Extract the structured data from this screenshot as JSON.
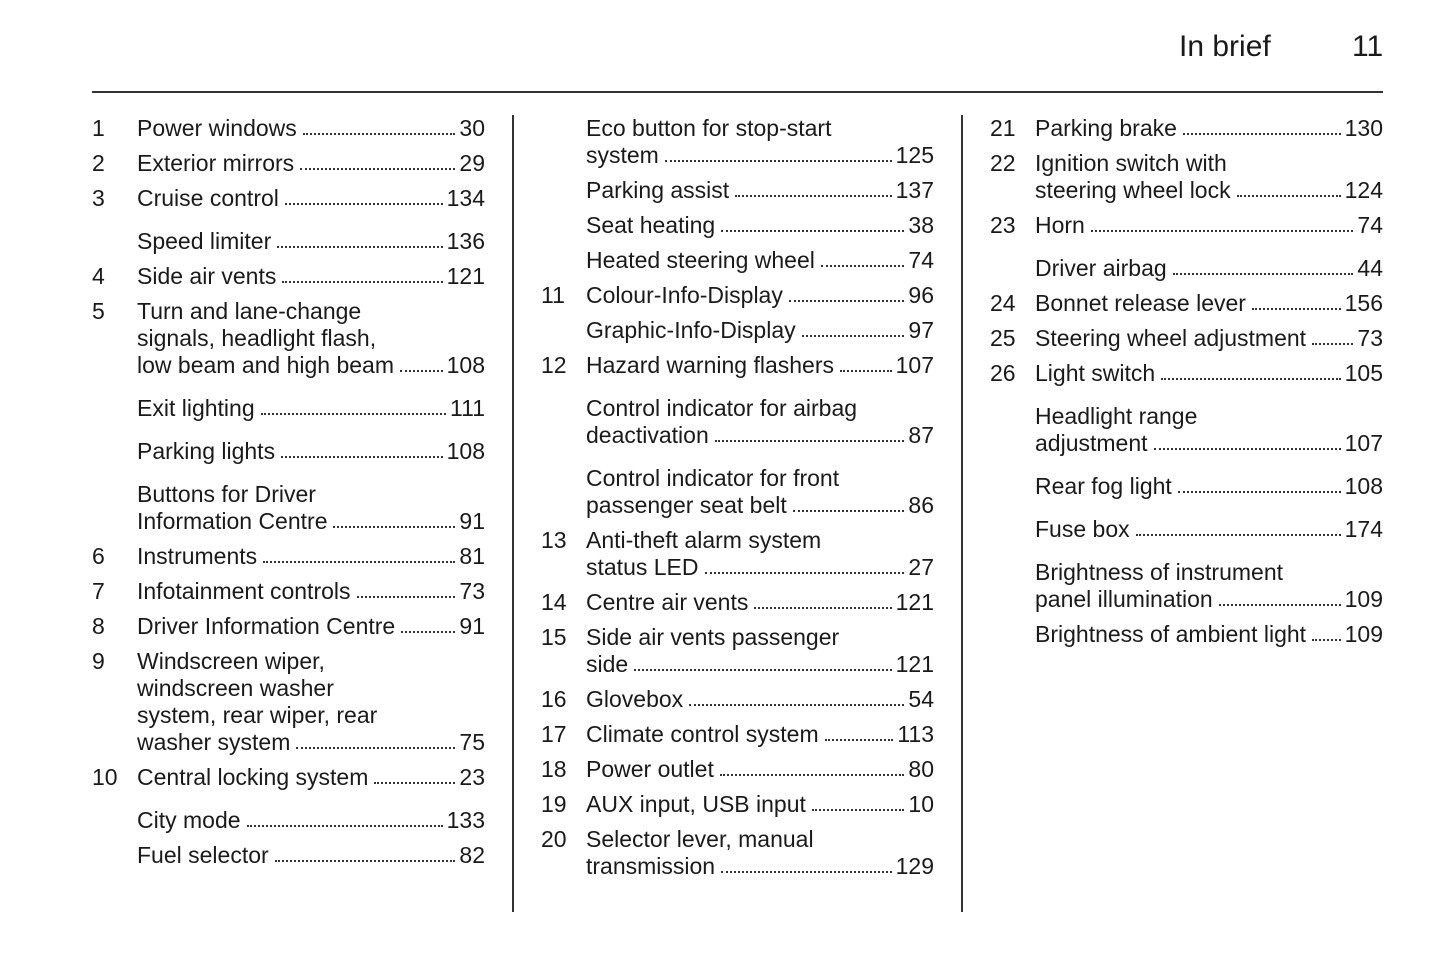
{
  "header": {
    "section": "In brief",
    "page_number": "11"
  },
  "columns": [
    {
      "entries": [
        {
          "number": "1",
          "lines": [
            "Power windows"
          ],
          "page": "30"
        },
        {
          "number": "2",
          "lines": [
            "Exterior mirrors"
          ],
          "page": "29"
        },
        {
          "number": "3",
          "lines": [
            "Cruise control"
          ],
          "page": "134"
        },
        {
          "lines": [
            "Speed limiter"
          ],
          "page": "136"
        },
        {
          "number": "4",
          "lines": [
            "Side air vents"
          ],
          "page": "121"
        },
        {
          "number": "5",
          "lines": [
            "Turn and lane-change",
            "signals, headlight flash,",
            "low beam and high beam"
          ],
          "page": "108"
        },
        {
          "lines": [
            "Exit lighting"
          ],
          "page": "111"
        },
        {
          "lines": [
            "Parking lights"
          ],
          "page": "108"
        },
        {
          "lines": [
            "Buttons for Driver",
            "Information Centre"
          ],
          "page": "91"
        },
        {
          "number": "6",
          "lines": [
            "Instruments"
          ],
          "page": "81"
        },
        {
          "number": "7",
          "lines": [
            "Infotainment controls"
          ],
          "page": "73"
        },
        {
          "number": "8",
          "lines": [
            "Driver Information Centre"
          ],
          "page": "91"
        },
        {
          "number": "9",
          "lines": [
            "Windscreen wiper,",
            "windscreen washer",
            "system, rear wiper, rear",
            "washer system"
          ],
          "page": "75"
        },
        {
          "number": "10",
          "lines": [
            "Central locking system"
          ],
          "page": "23"
        },
        {
          "lines": [
            "City mode"
          ],
          "page": "133"
        },
        {
          "lines": [
            "Fuel selector"
          ],
          "page": "82"
        }
      ]
    },
    {
      "entries": [
        {
          "lines": [
            "Eco button for stop-start",
            "system"
          ],
          "page": "125"
        },
        {
          "lines": [
            "Parking assist"
          ],
          "page": "137"
        },
        {
          "lines": [
            "Seat heating"
          ],
          "page": "38"
        },
        {
          "lines": [
            "Heated steering wheel"
          ],
          "page": "74"
        },
        {
          "number": "11",
          "lines": [
            "Colour-Info-Display"
          ],
          "page": "96"
        },
        {
          "lines": [
            "Graphic-Info-Display"
          ],
          "page": "97"
        },
        {
          "number": "12",
          "lines": [
            "Hazard warning flashers"
          ],
          "page": "107"
        },
        {
          "lines": [
            "Control indicator for airbag",
            "deactivation"
          ],
          "page": "87"
        },
        {
          "lines": [
            "Control indicator for front",
            "passenger seat belt"
          ],
          "page": "86"
        },
        {
          "number": "13",
          "lines": [
            "Anti-theft alarm system",
            "status LED"
          ],
          "page": "27"
        },
        {
          "number": "14",
          "lines": [
            "Centre air vents"
          ],
          "page": "121"
        },
        {
          "number": "15",
          "lines": [
            "Side air vents passenger",
            "side"
          ],
          "page": "121"
        },
        {
          "number": "16",
          "lines": [
            "Glovebox"
          ],
          "page": "54"
        },
        {
          "number": "17",
          "lines": [
            "Climate control system"
          ],
          "page": "113"
        },
        {
          "number": "18",
          "lines": [
            "Power outlet"
          ],
          "page": "80"
        },
        {
          "number": "19",
          "lines": [
            "AUX input, USB input"
          ],
          "page": "10"
        },
        {
          "number": "20",
          "lines": [
            "Selector lever, manual",
            "transmission"
          ],
          "page": "129"
        }
      ]
    },
    {
      "entries": [
        {
          "number": "21",
          "lines": [
            "Parking brake"
          ],
          "page": "130"
        },
        {
          "number": "22",
          "lines": [
            "Ignition switch with",
            "steering wheel lock"
          ],
          "page": "124"
        },
        {
          "number": "23",
          "lines": [
            "Horn"
          ],
          "page": "74"
        },
        {
          "lines": [
            "Driver airbag"
          ],
          "page": "44"
        },
        {
          "number": "24",
          "lines": [
            "Bonnet release lever"
          ],
          "page": "156"
        },
        {
          "number": "25",
          "lines": [
            "Steering wheel adjustment"
          ],
          "page": "73"
        },
        {
          "number": "26",
          "lines": [
            "Light switch"
          ],
          "page": "105"
        },
        {
          "lines": [
            "Headlight range",
            "adjustment"
          ],
          "page": "107"
        },
        {
          "lines": [
            "Rear fog light"
          ],
          "page": "108"
        },
        {
          "lines": [
            "Fuse box"
          ],
          "page": "174"
        },
        {
          "lines": [
            "Brightness of instrument",
            "panel illumination"
          ],
          "page": "109"
        },
        {
          "lines": [
            "Brightness of ambient light"
          ],
          "page": "109"
        }
      ]
    }
  ]
}
